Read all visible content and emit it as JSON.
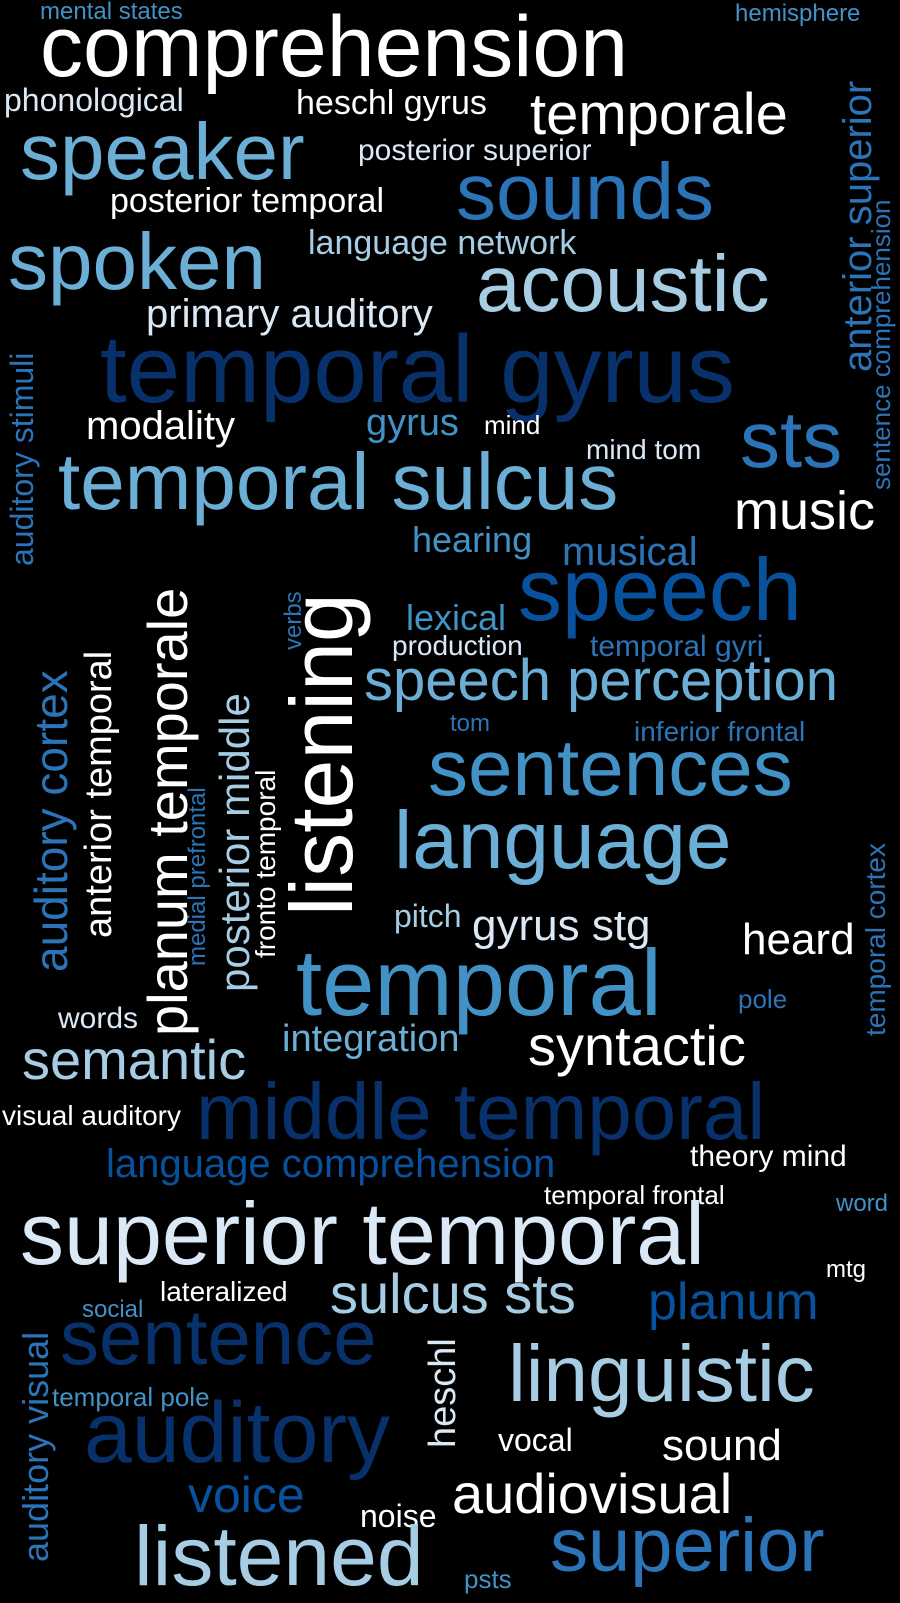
{
  "palette": {
    "background": "#000000",
    "white": "#ffffff",
    "pale_blue": "#dbe9f6",
    "light_blue": "#a6cde3",
    "mid_blue": "#6baed6",
    "blue": "#4292c6",
    "strong_blue": "#2b74b8",
    "dark_blue": "#08519c",
    "navy": "#08306b"
  },
  "words": [
    {
      "id": "comprehension",
      "text": "comprehension",
      "color": "#ffffff"
    },
    {
      "id": "mental-states",
      "text": "mental states",
      "color": "#4292c6"
    },
    {
      "id": "hemisphere",
      "text": "hemisphere",
      "color": "#4292c6"
    },
    {
      "id": "phonological",
      "text": "phonological",
      "color": "#dbe9f6"
    },
    {
      "id": "heschl-gyrus",
      "text": "heschl gyrus",
      "color": "#ffffff"
    },
    {
      "id": "temporale",
      "text": "temporale",
      "color": "#ffffff"
    },
    {
      "id": "speaker",
      "text": "speaker",
      "color": "#6baed6"
    },
    {
      "id": "posterior-superior",
      "text": "posterior superior",
      "color": "#dbe9f6"
    },
    {
      "id": "sounds",
      "text": "sounds",
      "color": "#2b74b8"
    },
    {
      "id": "posterior-temporal",
      "text": "posterior temporal",
      "color": "#ffffff"
    },
    {
      "id": "spoken",
      "text": "spoken",
      "color": "#6baed6"
    },
    {
      "id": "language-network",
      "text": "language network",
      "color": "#a6cde3"
    },
    {
      "id": "acoustic",
      "text": "acoustic",
      "color": "#a6cde3"
    },
    {
      "id": "primary-auditory",
      "text": "primary auditory",
      "color": "#dbe9f6"
    },
    {
      "id": "temporal-gyrus",
      "text": "temporal gyrus",
      "color": "#08306b"
    },
    {
      "id": "modality",
      "text": "modality",
      "color": "#ffffff"
    },
    {
      "id": "gyrus",
      "text": "gyrus",
      "color": "#4292c6"
    },
    {
      "id": "mind",
      "text": "mind",
      "color": "#ffffff"
    },
    {
      "id": "mind-tom",
      "text": "mind tom",
      "color": "#dbe9f6"
    },
    {
      "id": "sts",
      "text": "sts",
      "color": "#2b74b8"
    },
    {
      "id": "temporal-sulcus",
      "text": "temporal sulcus",
      "color": "#6baed6"
    },
    {
      "id": "music",
      "text": "music",
      "color": "#ffffff"
    },
    {
      "id": "hearing",
      "text": "hearing",
      "color": "#4292c6"
    },
    {
      "id": "musical",
      "text": "musical",
      "color": "#2b74b8"
    },
    {
      "id": "speech",
      "text": "speech",
      "color": "#08519c"
    },
    {
      "id": "lexical",
      "text": "lexical",
      "color": "#4292c6"
    },
    {
      "id": "production",
      "text": "production",
      "color": "#dbe9f6"
    },
    {
      "id": "temporal-gyri",
      "text": "temporal gyri",
      "color": "#2b74b8"
    },
    {
      "id": "speech-perception",
      "text": "speech perception",
      "color": "#6baed6"
    },
    {
      "id": "tom",
      "text": "tom",
      "color": "#2b74b8"
    },
    {
      "id": "inferior-frontal",
      "text": "inferior frontal",
      "color": "#2b74b8"
    },
    {
      "id": "sentences",
      "text": "sentences",
      "color": "#4292c6"
    },
    {
      "id": "language",
      "text": "language",
      "color": "#6baed6"
    },
    {
      "id": "pitch",
      "text": "pitch",
      "color": "#a6cde3"
    },
    {
      "id": "gyrus-stg",
      "text": "gyrus stg",
      "color": "#dbe9f6"
    },
    {
      "id": "heard",
      "text": "heard",
      "color": "#ffffff"
    },
    {
      "id": "temporal",
      "text": "temporal",
      "color": "#4292c6"
    },
    {
      "id": "pole",
      "text": "pole",
      "color": "#2b74b8"
    },
    {
      "id": "words-word",
      "text": "words",
      "color": "#dbe9f6"
    },
    {
      "id": "integration",
      "text": "integration",
      "color": "#6baed6"
    },
    {
      "id": "syntactic",
      "text": "syntactic",
      "color": "#ffffff"
    },
    {
      "id": "semantic",
      "text": "semantic",
      "color": "#a6cde3"
    },
    {
      "id": "visual-auditory",
      "text": "visual auditory",
      "color": "#ffffff"
    },
    {
      "id": "middle-temporal",
      "text": "middle temporal",
      "color": "#08306b"
    },
    {
      "id": "language-comprehension",
      "text": "language comprehension",
      "color": "#08519c"
    },
    {
      "id": "theory-mind",
      "text": "theory mind",
      "color": "#ffffff"
    },
    {
      "id": "temporal-frontal",
      "text": "temporal frontal",
      "color": "#ffffff"
    },
    {
      "id": "word",
      "text": "word",
      "color": "#4292c6"
    },
    {
      "id": "superior-temporal",
      "text": "superior temporal",
      "color": "#dbe9f6"
    },
    {
      "id": "mtg",
      "text": "mtg",
      "color": "#ffffff"
    },
    {
      "id": "lateralized",
      "text": "lateralized",
      "color": "#ffffff"
    },
    {
      "id": "sulcus-sts",
      "text": "sulcus sts",
      "color": "#a6cde3"
    },
    {
      "id": "social",
      "text": "social",
      "color": "#4292c6"
    },
    {
      "id": "planum",
      "text": "planum",
      "color": "#08519c"
    },
    {
      "id": "sentence",
      "text": "sentence",
      "color": "#08306b"
    },
    {
      "id": "linguistic",
      "text": "linguistic",
      "color": "#a6cde3"
    },
    {
      "id": "temporal-pole",
      "text": "temporal pole",
      "color": "#4292c6"
    },
    {
      "id": "auditory",
      "text": "auditory",
      "color": "#08306b"
    },
    {
      "id": "vocal",
      "text": "vocal",
      "color": "#ffffff"
    },
    {
      "id": "sound",
      "text": "sound",
      "color": "#ffffff"
    },
    {
      "id": "voice",
      "text": "voice",
      "color": "#08519c"
    },
    {
      "id": "audiovisual",
      "text": "audiovisual",
      "color": "#ffffff"
    },
    {
      "id": "noise",
      "text": "noise",
      "color": "#ffffff"
    },
    {
      "id": "listened",
      "text": "listened",
      "color": "#a6cde3"
    },
    {
      "id": "psts",
      "text": "psts",
      "color": "#4292c6"
    },
    {
      "id": "superior",
      "text": "superior",
      "color": "#2b74b8"
    },
    {
      "id": "anterior-superior",
      "text": "anterior superior",
      "color": "#2b74b8",
      "orientation": "vertical"
    },
    {
      "id": "sentence-comprehension",
      "text": "sentence comprehension",
      "color": "#2b74b8",
      "orientation": "vertical"
    },
    {
      "id": "auditory-stimuli",
      "text": "auditory stimuli",
      "color": "#2b74b8",
      "orientation": "vertical"
    },
    {
      "id": "auditory-cortex",
      "text": "auditory cortex",
      "color": "#2b74b8",
      "orientation": "vertical"
    },
    {
      "id": "anterior-temporal",
      "text": "anterior temporal",
      "color": "#ffffff",
      "orientation": "vertical"
    },
    {
      "id": "planum-temporale",
      "text": "planum temporale",
      "color": "#ffffff",
      "orientation": "vertical"
    },
    {
      "id": "medial-prefrontal",
      "text": "medial prefrontal",
      "color": "#2b74b8",
      "orientation": "vertical"
    },
    {
      "id": "posterior-middle",
      "text": "posterior middle",
      "color": "#a6cde3",
      "orientation": "vertical"
    },
    {
      "id": "fronto-temporal",
      "text": "fronto temporal",
      "color": "#ffffff",
      "orientation": "vertical"
    },
    {
      "id": "verbs",
      "text": "verbs",
      "color": "#2b74b8",
      "orientation": "vertical"
    },
    {
      "id": "listening",
      "text": "listening",
      "color": "#ffffff",
      "orientation": "vertical"
    },
    {
      "id": "temporal-cortex",
      "text": "temporal cortex",
      "color": "#2b74b8",
      "orientation": "vertical"
    },
    {
      "id": "heschl",
      "text": "heschl",
      "color": "#dbe9f6",
      "orientation": "vertical"
    },
    {
      "id": "auditory-visual",
      "text": "auditory visual",
      "color": "#2b74b8",
      "orientation": "vertical"
    }
  ]
}
